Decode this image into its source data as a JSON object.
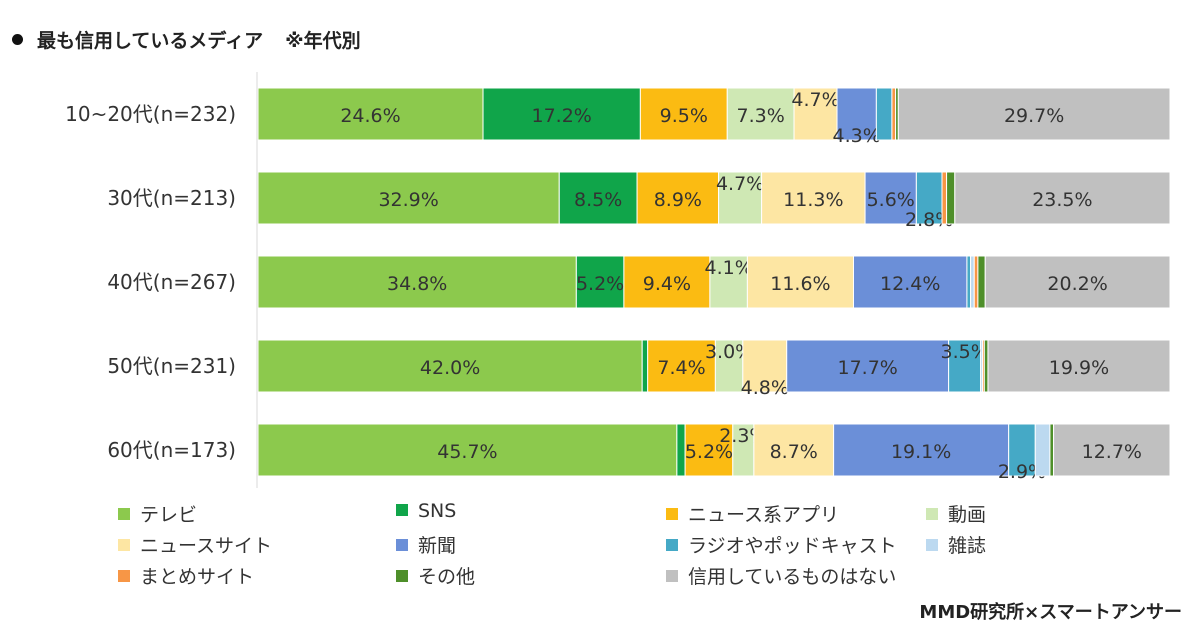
{
  "title": "最も信用しているメディア",
  "subtitle": "※年代別",
  "source": "MMD研究所×スマートアンサー",
  "chart_data": {
    "type": "bar",
    "orientation": "horizontal",
    "stacked": "percent",
    "categories": [
      "10~20代(n=232)",
      "30代(n=213)",
      "40代(n=267)",
      "50代(n=231)",
      "60代(n=173)"
    ],
    "series": [
      {
        "name": "テレビ",
        "color": "#8cc94d",
        "values": [
          24.6,
          32.9,
          34.8,
          42.0,
          45.7
        ]
      },
      {
        "name": "SNS",
        "color": "#10a54a",
        "values": [
          17.2,
          8.5,
          5.2,
          0.6,
          0.9
        ]
      },
      {
        "name": "ニュース系アプリ",
        "color": "#fbbb12",
        "values": [
          9.5,
          8.9,
          9.4,
          7.4,
          5.2
        ]
      },
      {
        "name": "動画",
        "color": "#cfe8b4",
        "values": [
          7.3,
          4.7,
          4.1,
          3.0,
          2.3
        ]
      },
      {
        "name": "ニュースサイト",
        "color": "#fde6a3",
        "values": [
          4.7,
          11.3,
          11.6,
          4.8,
          8.7
        ]
      },
      {
        "name": "新聞",
        "color": "#6b8fd8",
        "values": [
          4.3,
          5.6,
          12.4,
          17.7,
          19.1
        ]
      },
      {
        "name": "ラジオやポッドキャスト",
        "color": "#45a9c6",
        "values": [
          1.7,
          2.8,
          0.4,
          3.5,
          2.9
        ]
      },
      {
        "name": "雑誌",
        "color": "#bcd9f0",
        "values": [
          0.0,
          0.0,
          0.4,
          0.2,
          1.6
        ]
      },
      {
        "name": "まとめサイト",
        "color": "#f79646",
        "values": [
          0.4,
          0.5,
          0.4,
          0.2,
          0.0
        ]
      },
      {
        "name": "その他",
        "color": "#4e8f2a",
        "values": [
          0.3,
          0.9,
          0.8,
          0.4,
          0.4
        ]
      },
      {
        "name": "信用しているものはない",
        "color": "#c0c0c0",
        "values": [
          29.7,
          23.5,
          20.2,
          19.9,
          12.7
        ]
      }
    ],
    "data_labels": [
      [
        "24.6%",
        "17.2%",
        "9.5%",
        "7.3%",
        "4.7%",
        "4.3%",
        "",
        "",
        "",
        "",
        "29.7%"
      ],
      [
        "32.9%",
        "8.5%",
        "8.9%",
        "4.7%",
        "11.3%",
        "5.6%",
        "2.8%",
        "",
        "",
        "",
        "23.5%"
      ],
      [
        "34.8%",
        "5.2%",
        "9.4%",
        "4.1%",
        "11.6%",
        "12.4%",
        "",
        "",
        "",
        "",
        "20.2%"
      ],
      [
        "42.0%",
        "",
        "7.4%",
        "3.0%",
        "4.8%",
        "17.7%",
        "3.5%",
        "",
        "",
        "",
        "19.9%"
      ],
      [
        "45.7%",
        "",
        "5.2%",
        "2.3%",
        "8.7%",
        "19.1%",
        "2.9%",
        "",
        "",
        "",
        "12.7%"
      ]
    ],
    "xlim": [
      0,
      100
    ],
    "legend": "bottom",
    "grid": false
  }
}
